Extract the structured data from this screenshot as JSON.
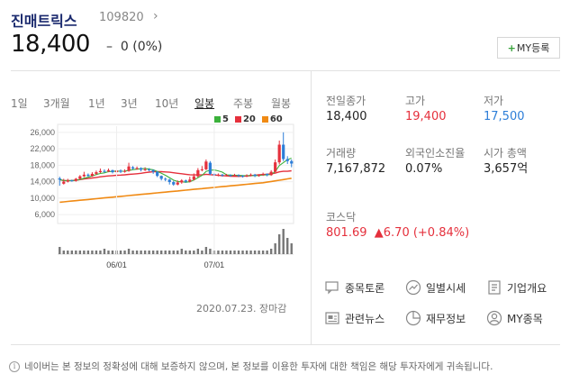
{
  "header": {
    "name": "진매트릭스",
    "code": "109820",
    "code_chevron": "›",
    "price": "18,400",
    "change_sign": "–",
    "change": "0 (0%)",
    "my_register_plus": "+",
    "my_register": "MY등록"
  },
  "tabs": [
    {
      "label": "1일",
      "active": false
    },
    {
      "label": "3개월",
      "active": false
    },
    {
      "label": "1년",
      "active": false
    },
    {
      "label": "3년",
      "active": false
    },
    {
      "label": "10년",
      "active": false
    },
    {
      "label": "일봉",
      "active": true
    },
    {
      "label": "주봉",
      "active": false
    },
    {
      "label": "월봉",
      "active": false
    }
  ],
  "legend": [
    {
      "label": "5",
      "color": "#3bb13b"
    },
    {
      "label": "20",
      "color": "#e5303c"
    },
    {
      "label": "60",
      "color": "#f08a14"
    }
  ],
  "chart_data": {
    "type": "candlestick",
    "y_ticks": [
      "26,000",
      "22,000",
      "18,000",
      "14,000",
      "10,000",
      "6,000"
    ],
    "y_tick_values": [
      26000,
      22000,
      18000,
      14000,
      10000,
      6000
    ],
    "ylim": [
      4700,
      27500
    ],
    "x_tick_labels": [
      "06/01",
      "07/01"
    ],
    "x_tick_index": [
      14,
      38
    ],
    "up_color": "#e5303c",
    "down_color": "#2d7ed8",
    "candles": [
      [
        14800,
        14500,
        15200,
        13000
      ],
      [
        13500,
        14000,
        14700,
        13300
      ],
      [
        14000,
        14300,
        14700,
        13800
      ],
      [
        14300,
        14200,
        14500,
        14000
      ],
      [
        14200,
        14700,
        14900,
        14000
      ],
      [
        14700,
        15300,
        15600,
        14400
      ],
      [
        15300,
        15700,
        16400,
        15100
      ],
      [
        15700,
        15400,
        16000,
        15200
      ],
      [
        15400,
        15900,
        16300,
        15200
      ],
      [
        15900,
        16300,
        16700,
        15600
      ],
      [
        16300,
        16600,
        17200,
        16100
      ],
      [
        16600,
        16500,
        17000,
        16200
      ],
      [
        16500,
        16800,
        17200,
        16300
      ],
      [
        16800,
        16300,
        16900,
        16000
      ],
      [
        16300,
        16700,
        17200,
        16100
      ],
      [
        16700,
        16400,
        17000,
        16100
      ],
      [
        16400,
        16600,
        17000,
        16200
      ],
      [
        16600,
        17700,
        18600,
        16400
      ],
      [
        17500,
        17200,
        17800,
        16900
      ],
      [
        17200,
        17300,
        17700,
        16900
      ],
      [
        17300,
        16900,
        17500,
        16500
      ],
      [
        16900,
        17000,
        17500,
        16600
      ],
      [
        17000,
        16800,
        17300,
        16500
      ],
      [
        16800,
        16400,
        17000,
        15900
      ],
      [
        16400,
        15400,
        16500,
        15100
      ],
      [
        15400,
        14700,
        15500,
        14300
      ],
      [
        14700,
        14500,
        15000,
        14100
      ],
      [
        14500,
        13900,
        14700,
        13300
      ],
      [
        13900,
        13300,
        14200,
        13000
      ],
      [
        13300,
        13800,
        14300,
        13100
      ],
      [
        13800,
        14300,
        14600,
        13500
      ],
      [
        14300,
        14000,
        14500,
        13700
      ],
      [
        14000,
        14500,
        15200,
        13800
      ],
      [
        14500,
        15300,
        16000,
        14300
      ],
      [
        15300,
        16800,
        17300,
        15000
      ],
      [
        16800,
        17000,
        17800,
        16500
      ],
      [
        17000,
        18900,
        19400,
        16800
      ],
      [
        18600,
        15900,
        19000,
        15600
      ],
      [
        15900,
        15600,
        16200,
        15300
      ],
      [
        15600,
        15700,
        16000,
        15300
      ],
      [
        15700,
        15500,
        15900,
        15200
      ],
      [
        15500,
        15600,
        15900,
        15300
      ],
      [
        15600,
        15500,
        15800,
        15200
      ],
      [
        15500,
        15600,
        15900,
        15300
      ],
      [
        15600,
        15400,
        15800,
        15100
      ],
      [
        15400,
        15300,
        15600,
        15000
      ],
      [
        15300,
        15500,
        15800,
        15100
      ],
      [
        15500,
        15700,
        16000,
        15300
      ],
      [
        15700,
        15400,
        15900,
        15100
      ],
      [
        15400,
        15600,
        15800,
        15200
      ],
      [
        15600,
        15900,
        16200,
        15400
      ],
      [
        15900,
        15600,
        16000,
        15300
      ],
      [
        15600,
        16400,
        16800,
        15400
      ],
      [
        16400,
        18700,
        19400,
        16300
      ],
      [
        18700,
        23000,
        24000,
        18200
      ],
      [
        23000,
        19500,
        26000,
        19000
      ],
      [
        19500,
        19000,
        20200,
        18300
      ],
      [
        19000,
        18400,
        19400,
        17500
      ]
    ],
    "volumes": [
      4,
      2,
      2,
      2,
      2,
      2,
      2,
      2,
      2,
      2,
      2,
      3,
      2,
      2,
      2,
      2,
      2,
      3,
      2,
      2,
      2,
      2,
      2,
      2,
      2,
      2,
      2,
      2,
      2,
      2,
      3,
      2,
      2,
      2,
      3,
      2,
      4,
      3,
      2,
      2,
      2,
      2,
      2,
      2,
      2,
      2,
      2,
      2,
      2,
      2,
      2,
      2,
      3,
      6,
      11,
      14,
      9,
      6
    ]
  },
  "chart_date": "2020.07.23. 장마감",
  "info": [
    {
      "label": "전일종가",
      "value": "18,400",
      "tone": ""
    },
    {
      "label": "고가",
      "value": "19,400",
      "tone": "up"
    },
    {
      "label": "저가",
      "value": "17,500",
      "tone": "down"
    },
    {
      "label": "거래량",
      "value": "7,167,872",
      "tone": ""
    },
    {
      "label": "외국인소진율",
      "value": "0.07%",
      "tone": ""
    },
    {
      "label": "시가 총액",
      "value": "3,657억",
      "tone": ""
    }
  ],
  "kosdaq": {
    "label": "코스닥",
    "value": "801.69",
    "arrow": "▲",
    "change": "6.70 (+0.84%)"
  },
  "menu": [
    {
      "label": "종목토론",
      "icon": "discussion-icon"
    },
    {
      "label": "일별시세",
      "icon": "trend-icon"
    },
    {
      "label": "기업개요",
      "icon": "document-icon"
    },
    {
      "label": "관련뉴스",
      "icon": "news-icon"
    },
    {
      "label": "재무정보",
      "icon": "pie-chart-icon"
    },
    {
      "label": "MY종목",
      "icon": "user-icon"
    }
  ],
  "footer": {
    "icon": "i",
    "text": "네이버는 본 정보의 정확성에 대해 보증하지 않으며, 본 정보를 이용한 투자에 대한 책임은 해당 투자자에게 귀속됩니다."
  }
}
